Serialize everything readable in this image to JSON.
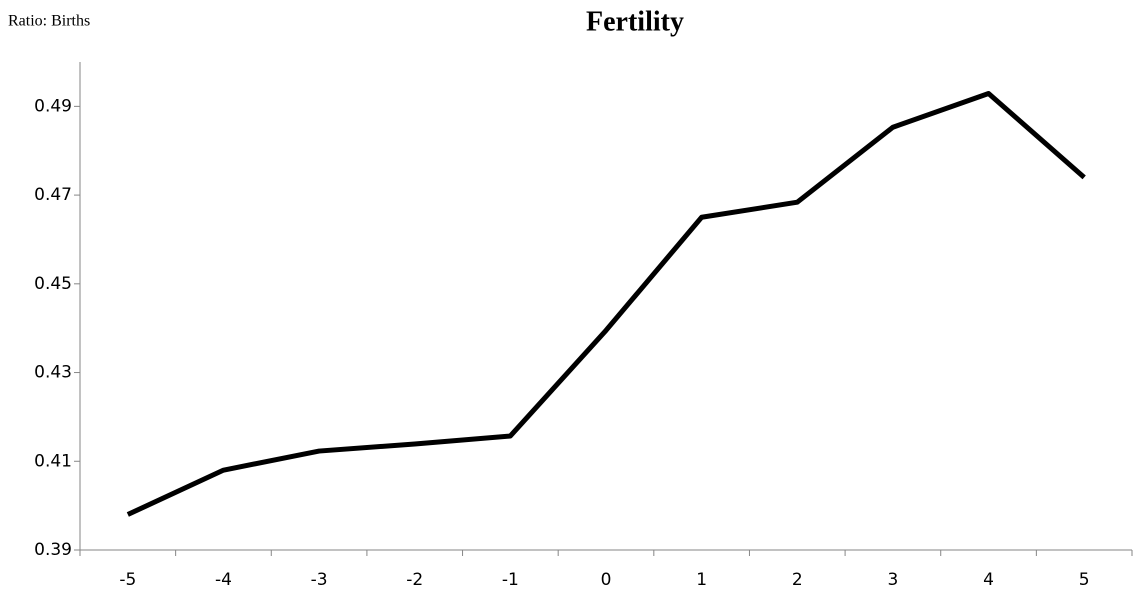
{
  "chart_data": {
    "type": "line",
    "title": "Fertility",
    "y_label": "Ratio: Births",
    "categories": [
      "-5",
      "-4",
      "-3",
      "-2",
      "-1",
      "0",
      "1",
      "2",
      "3",
      "4",
      "5"
    ],
    "values": [
      0.398,
      0.408,
      0.4123,
      0.4139,
      0.4157,
      0.4395,
      0.465,
      0.4684,
      0.4853,
      0.4929,
      0.474
    ],
    "color": "#000000",
    "ylim": [
      0.39,
      0.5
    ],
    "yticks": [
      0.39,
      0.41,
      0.43,
      0.45,
      0.47,
      0.49
    ],
    "grid": false
  }
}
